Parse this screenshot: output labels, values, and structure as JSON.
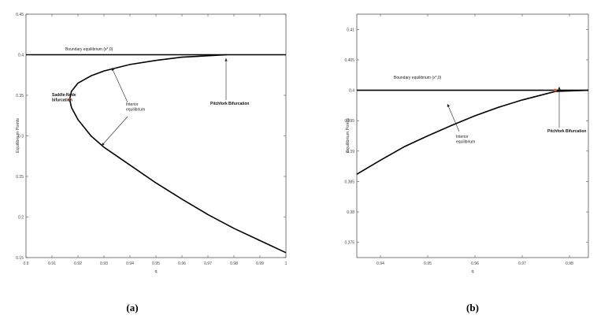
{
  "chart_data": [
    {
      "type": "line",
      "panel_label": "(a)",
      "xlabel": "q",
      "ylabel": "Equilibrium Points",
      "xlim": [
        0.9,
        1.0
      ],
      "ylim": [
        0.15,
        0.45
      ],
      "xticks": [
        0.9,
        0.91,
        0.92,
        0.93,
        0.94,
        0.95,
        0.96,
        0.97,
        0.98,
        0.99,
        1
      ],
      "xticklabels": [
        "0.9",
        "0.91",
        "0.92",
        "0.93",
        "0.94",
        "0.95",
        "0.96",
        "0.97",
        "0.98",
        "0.99",
        "1"
      ],
      "yticks": [
        0.15,
        0.2,
        0.25,
        0.3,
        0.35,
        0.4,
        0.45
      ],
      "yticklabels": [
        "0.15",
        "0.2",
        "0.25",
        "0.3",
        "0.35",
        "0.4",
        "0.45"
      ],
      "series": [
        {
          "role": "boundary",
          "x": [
            0.9,
            1.0
          ],
          "y": [
            0.4,
            0.4
          ]
        },
        {
          "role": "interior",
          "x": [
            0.9774,
            0.96,
            0.95,
            0.94,
            0.93,
            0.925,
            0.92,
            0.9175,
            0.9168,
            0.9175,
            0.92,
            0.925,
            0.93,
            0.94,
            0.95,
            0.96,
            0.97,
            0.98,
            0.99,
            1.0
          ],
          "y": [
            0.4,
            0.397,
            0.393,
            0.388,
            0.38,
            0.374,
            0.365,
            0.355,
            0.345,
            0.335,
            0.32,
            0.3,
            0.286,
            0.264,
            0.242,
            0.222,
            0.203,
            0.186,
            0.171,
            0.156
          ]
        }
      ],
      "points": [
        {
          "name": "saddle-node",
          "x": 0.9168,
          "y": 0.345,
          "color": "#e05020"
        }
      ],
      "annotations": [
        {
          "text": "Boundary equilibrium (x*,0)",
          "bold": false
        },
        {
          "text": "Saddle-Node\nbifurcation",
          "bold": true
        },
        {
          "text": "Interior\nequilibrium",
          "bold": false
        },
        {
          "text": "Pitchfork Bifurcation",
          "bold": true
        }
      ]
    },
    {
      "type": "line",
      "panel_label": "(b)",
      "xlabel": "q",
      "ylabel": "Equilibrium Points",
      "xlim": [
        0.935,
        0.984
      ],
      "ylim": [
        0.3725,
        0.4125
      ],
      "xticks": [
        0.94,
        0.95,
        0.96,
        0.97,
        0.98
      ],
      "xticklabels": [
        "0.94",
        "0.95",
        "0.96",
        "0.97",
        "0.98"
      ],
      "yticks": [
        0.375,
        0.38,
        0.385,
        0.39,
        0.395,
        0.4,
        0.405,
        0.41
      ],
      "yticklabels": [
        "0.375",
        "0.38",
        "0.385",
        "0.39",
        "0.395",
        "0.4",
        "0.405",
        "0.41"
      ],
      "series": [
        {
          "role": "boundary",
          "x": [
            0.935,
            0.984
          ],
          "y": [
            0.4,
            0.4
          ]
        },
        {
          "role": "interior",
          "x": [
            0.935,
            0.94,
            0.945,
            0.95,
            0.955,
            0.96,
            0.965,
            0.97,
            0.975,
            0.977,
            0.984
          ],
          "y": [
            0.3862,
            0.3885,
            0.3907,
            0.3925,
            0.3942,
            0.3958,
            0.3972,
            0.3984,
            0.3994,
            0.3998,
            0.4
          ]
        }
      ],
      "points": [
        {
          "name": "pitchfork",
          "x": 0.977,
          "y": 0.4,
          "color": "#e05020"
        }
      ],
      "annotations": [
        {
          "text": "Boundary equilibrium (x*,0)",
          "bold": false
        },
        {
          "text": "Interior\nequilibrium",
          "bold": false
        },
        {
          "text": "Pitchfork Bifurcation",
          "bold": true
        }
      ]
    }
  ]
}
